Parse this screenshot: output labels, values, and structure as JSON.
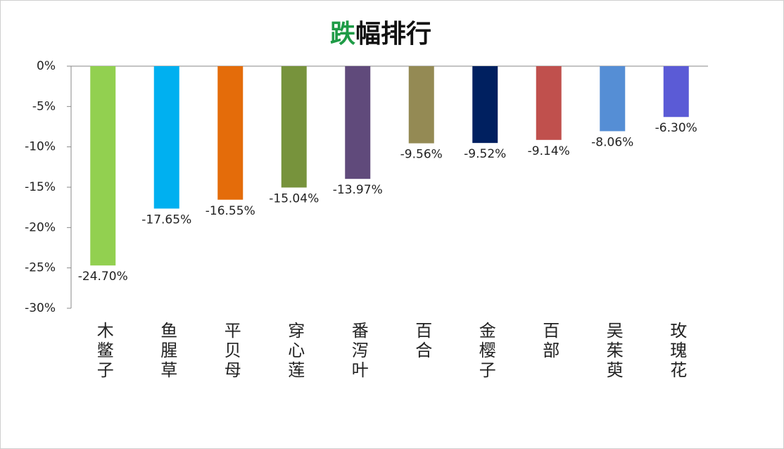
{
  "chart_data": {
    "type": "bar",
    "title": "跌幅排行",
    "categories": [
      "木鳖子",
      "鱼腥草",
      "平贝母",
      "穿心莲",
      "番泻叶",
      "百合",
      "金樱子",
      "百部",
      "吴茱萸",
      "玫瑰花"
    ],
    "values": [
      -24.7,
      -17.65,
      -16.55,
      -15.04,
      -13.97,
      -9.56,
      -9.52,
      -9.14,
      -8.06,
      -6.3
    ],
    "value_labels": [
      "-24.70%",
      "-17.65%",
      "-16.55%",
      "-15.04%",
      "-13.97%",
      "-9.56%",
      "-9.52%",
      "-9.14%",
      "-8.06%",
      "-6.30%"
    ],
    "colors": [
      "#92d050",
      "#00b0f0",
      "#e46c0a",
      "#77933c",
      "#604a7b",
      "#948a54",
      "#002060",
      "#c0504d",
      "#558ed5",
      "#5b5bd6"
    ],
    "ylim": [
      -30,
      0
    ],
    "yticks": [
      {
        "value": 0,
        "label": "0%"
      },
      {
        "value": -5,
        "label": "-5%"
      },
      {
        "value": -10,
        "label": "-10%"
      },
      {
        "value": -15,
        "label": "-15%"
      },
      {
        "value": -20,
        "label": "-20%"
      },
      {
        "value": -25,
        "label": "-25%"
      },
      {
        "value": -30,
        "label": "-30%"
      }
    ]
  }
}
